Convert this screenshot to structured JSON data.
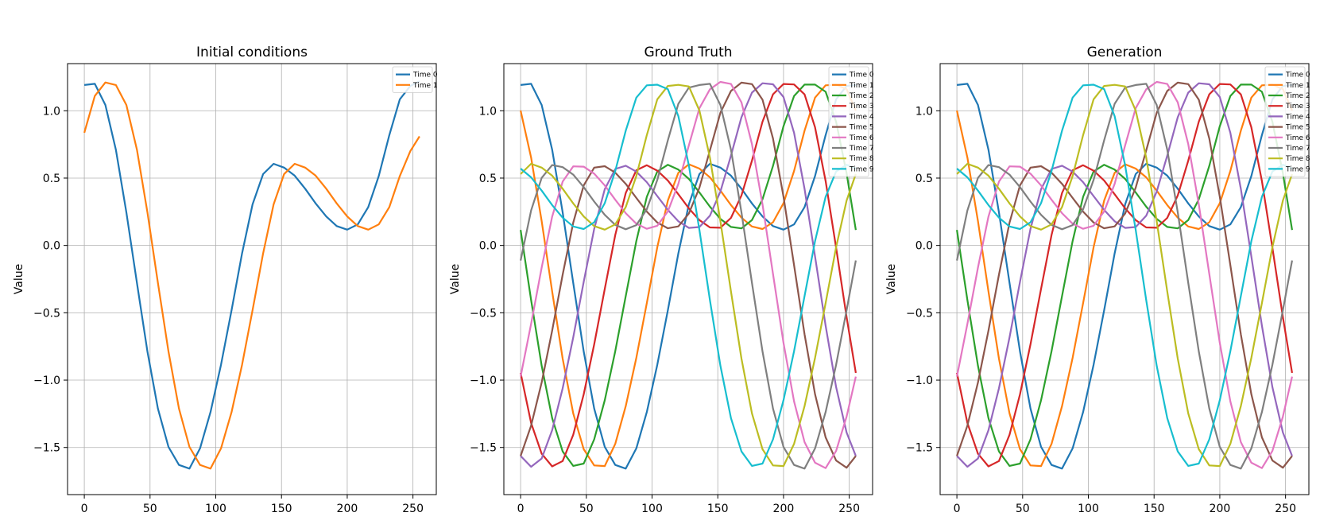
{
  "figure": {
    "suptitle": ""
  },
  "colors": [
    "#1f77b4",
    "#ff7f0e",
    "#2ca02c",
    "#d62728",
    "#9467bd",
    "#8c564b",
    "#e377c2",
    "#7f7f7f",
    "#bcbd22",
    "#17becf"
  ],
  "chart_data": [
    {
      "type": "line",
      "title": "Initial conditions",
      "xlabel": "",
      "ylabel": "Value",
      "xlim": [
        -12.75,
        267.75
      ],
      "ylim": [
        -1.85,
        1.35
      ],
      "xticks": [
        0,
        50,
        100,
        150,
        200,
        250
      ],
      "yticks": [
        -1.5,
        -1.0,
        -0.5,
        0.0,
        0.5,
        1.0
      ],
      "grid": true,
      "legend": "top-right",
      "x": [
        0,
        8,
        16,
        24,
        32,
        40,
        48,
        56,
        64,
        72,
        80,
        88,
        96,
        104,
        112,
        120,
        128,
        136,
        144,
        152,
        160,
        168,
        176,
        184,
        192,
        200,
        208,
        216,
        224,
        232,
        240,
        248,
        255
      ],
      "series": [
        {
          "name": "Time 0",
          "values": [
            1.191,
            1.2,
            1.043,
            0.711,
            0.246,
            -0.278,
            -0.787,
            -1.211,
            -1.496,
            -1.63,
            -1.657,
            -1.507,
            -1.237,
            -0.886,
            -0.481,
            -0.059,
            0.305,
            0.53,
            0.606,
            0.578,
            0.518,
            0.421,
            0.312,
            0.215,
            0.144,
            0.117,
            0.156,
            0.285,
            0.515,
            0.819,
            1.085,
            1.184,
            1.219
          ]
        },
        {
          "name": "Time 1",
          "values": [
            0.837,
            1.11,
            1.21,
            1.191,
            1.043,
            0.711,
            0.246,
            -0.278,
            -0.787,
            -1.211,
            -1.496,
            -1.63,
            -1.657,
            -1.507,
            -1.237,
            -0.886,
            -0.481,
            -0.059,
            0.305,
            0.53,
            0.606,
            0.578,
            0.518,
            0.421,
            0.312,
            0.215,
            0.144,
            0.117,
            0.156,
            0.285,
            0.515,
            0.7,
            0.81
          ]
        }
      ]
    },
    {
      "type": "line",
      "title": "Ground Truth",
      "xlabel": "",
      "ylabel": "Value",
      "xlim": [
        -12.75,
        267.75
      ],
      "ylim": [
        -1.85,
        1.35
      ],
      "xticks": [
        0,
        50,
        100,
        150,
        200,
        250
      ],
      "yticks": [
        -1.5,
        -1.0,
        -0.5,
        0.0,
        0.5,
        1.0
      ],
      "grid": true,
      "legend": "top-right",
      "shifted_family": {
        "base_series": "Time 0",
        "shift_per_step": 17,
        "count": 10,
        "base_from_panel": 0,
        "label_prefix": "Time "
      }
    },
    {
      "type": "line",
      "title": "Generation",
      "xlabel": "",
      "ylabel": "Value",
      "xlim": [
        -12.75,
        267.75
      ],
      "ylim": [
        -1.85,
        1.35
      ],
      "xticks": [
        0,
        50,
        100,
        150,
        200,
        250
      ],
      "yticks": [
        -1.5,
        -1.0,
        -0.5,
        0.0,
        0.5,
        1.0
      ],
      "grid": true,
      "legend": "top-right",
      "shifted_family": {
        "base_series": "Time 0",
        "shift_per_step": 17,
        "count": 10,
        "base_from_panel": 0,
        "label_prefix": "Time "
      }
    }
  ]
}
